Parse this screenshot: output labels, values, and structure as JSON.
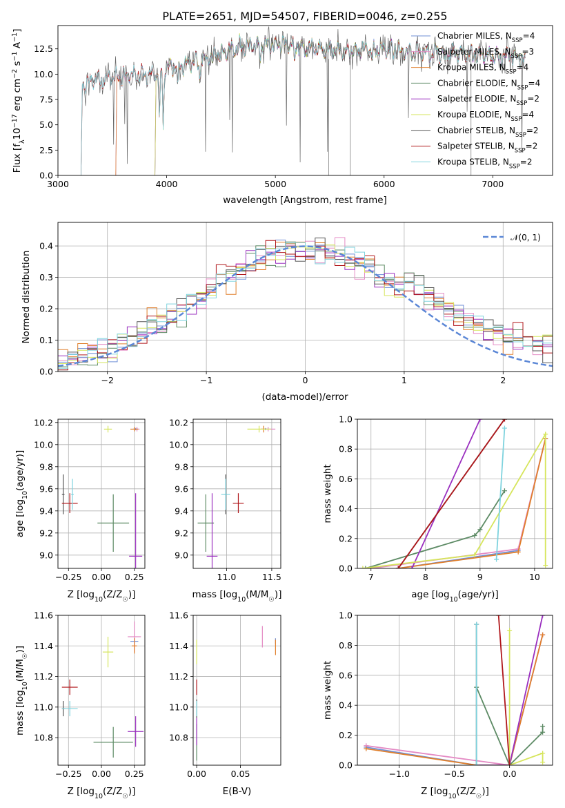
{
  "figure_title": "PLATE=2651, MJD=54507, FIBERID=0046, z=0.255",
  "colors": {
    "Chabrier MILES": "#6f8fd6",
    "Salpeter MILES": "#e48ac4",
    "Kroupa MILES": "#e07f2b",
    "Chabrier ELODIE": "#5c8a64",
    "Salpeter ELODIE": "#9a2fbf",
    "Kroupa ELODIE": "#d6e55c",
    "Chabrier STELIB": "#555555",
    "Salpeter STELIB": "#b0161a",
    "Kroupa STELIB": "#7fd3de",
    "normal": "#5b87d6"
  },
  "chart_data": [
    {
      "id": "spectrum",
      "type": "line",
      "title": "PLATE=2651, MJD=54507, FIBERID=0046, z=0.255",
      "xlabel": "wavelength [Angstrom, rest frame]",
      "ylabel": "Flux [f_λ 10^−17 erg cm^−2 s^−1 A^−1]",
      "ylabel_parts": [
        "Flux [f",
        "λ",
        "10",
        "−17",
        " erg cm",
        "−2",
        " s",
        "−1",
        " A",
        "−1",
        "]"
      ],
      "xlim": [
        3000,
        7550
      ],
      "ylim": [
        0,
        14.8
      ],
      "xticks": [
        3000,
        4000,
        5000,
        6000,
        7000
      ],
      "yticks": [
        0.0,
        2.5,
        5.0,
        7.5,
        10.0,
        12.5
      ],
      "legend_position": "right",
      "legend": [
        {
          "label": "Chabrier MILES, N",
          "sub": "SSP",
          "suffix": "=4"
        },
        {
          "label": "Salpeter MILES, N",
          "sub": "SSP",
          "suffix": "=3"
        },
        {
          "label": "Kroupa MILES, N",
          "sub": "SSP",
          "suffix": "=4"
        },
        {
          "label": "Chabrier ELODIE, N",
          "sub": "SSP",
          "suffix": "=4"
        },
        {
          "label": "Salpeter ELODIE, N",
          "sub": "SSP",
          "suffix": "=2"
        },
        {
          "label": "Kroupa ELODIE, N",
          "sub": "SSP",
          "suffix": "=4"
        },
        {
          "label": "Chabrier STELIB, N",
          "sub": "SSP",
          "suffix": "=2"
        },
        {
          "label": "Salpeter STELIB, N",
          "sub": "SSP",
          "suffix": "=2"
        },
        {
          "label": "Kroupa STELIB, N",
          "sub": "SSP",
          "suffix": "=2"
        }
      ],
      "series": [
        {
          "name": "Chabrier MILES",
          "start": 3540
        },
        {
          "name": "Salpeter MILES",
          "start": 3540
        },
        {
          "name": "Kroupa MILES",
          "start": 3540
        },
        {
          "name": "Chabrier ELODIE",
          "start": 3900
        },
        {
          "name": "Salpeter ELODIE",
          "start": 3900
        },
        {
          "name": "Kroupa ELODIE",
          "start": 3900
        },
        {
          "name": "Chabrier STELIB",
          "start": 3220
        },
        {
          "name": "Salpeter STELIB",
          "start": 3220
        },
        {
          "name": "Kroupa STELIB",
          "start": 3220
        }
      ],
      "continuum": {
        "x": [
          3200,
          3300,
          3500,
          3700,
          3900,
          4000,
          4200,
          4400,
          4600,
          4800,
          5000,
          5200,
          5400,
          5600,
          5800,
          6000,
          6200,
          6500,
          6800,
          7000,
          7300
        ],
        "y": [
          8.8,
          9.3,
          9.6,
          9.9,
          10.0,
          10.7,
          11.0,
          11.6,
          12.5,
          12.8,
          12.9,
          12.9,
          12.5,
          12.2,
          12.4,
          12.5,
          12.2,
          12.1,
          12.0,
          11.8,
          11.6
        ]
      },
      "absorption": [
        [
          3934,
          5.5
        ],
        [
          3969,
          5.8
        ],
        [
          4102,
          2.5
        ],
        [
          4304,
          2.0
        ],
        [
          4862,
          2.0
        ],
        [
          5175,
          1.8
        ],
        [
          5270,
          1.5
        ],
        [
          5893,
          1.5
        ],
        [
          6563,
          1.0
        ]
      ]
    },
    {
      "id": "residuals",
      "type": "line",
      "xlabel": "(data-model)/error",
      "ylabel": "Normed distribution",
      "xlim": [
        -2.5,
        2.5
      ],
      "ylim": [
        0,
        0.475
      ],
      "xticks": [
        -2,
        -1,
        0,
        1,
        2
      ],
      "yticks": [
        0.0,
        0.1,
        0.2,
        0.3,
        0.4
      ],
      "grid": true,
      "legend_position": "top-right",
      "legend": [
        "𝒩(0, 1)"
      ],
      "normal_curve": {
        "mean": 0,
        "sigma": 1
      }
    },
    {
      "id": "age_vs_Z",
      "type": "scatter",
      "xlabel": "Z [log10(Z/Z☉)]",
      "xlabel_parts": [
        "Z [log",
        "10",
        "(Z/Z",
        "☉",
        ")]"
      ],
      "ylabel": "age [log10(age/yr)]",
      "ylabel_parts": [
        "age  [log",
        "10",
        "(age/yr)]"
      ],
      "xlim": [
        -0.33,
        0.33
      ],
      "ylim": [
        8.88,
        10.23
      ],
      "xticks": [
        -0.25,
        0.0,
        0.25
      ],
      "yticks": [
        9.0,
        9.2,
        9.4,
        9.6,
        9.8,
        10.0,
        10.2
      ],
      "grid": true,
      "points": [
        {
          "series": "Chabrier MILES",
          "x": 0.26,
          "xerr": 0.02,
          "y": 10.14,
          "yerr": 0.01
        },
        {
          "series": "Salpeter MILES",
          "x": 0.27,
          "xerr": 0.02,
          "y": 10.14,
          "yerr": 0.02
        },
        {
          "series": "Kroupa MILES",
          "x": 0.25,
          "xerr": 0.03,
          "y": 10.14,
          "yerr": 0.02
        },
        {
          "series": "Chabrier ELODIE",
          "x": 0.09,
          "xerr": 0.12,
          "y": 9.29,
          "yerr": 0.26
        },
        {
          "series": "Salpeter ELODIE",
          "x": 0.26,
          "xerr": 0.05,
          "y": 8.99,
          "yerr": 0.57
        },
        {
          "series": "Kroupa ELODIE",
          "x": 0.05,
          "xerr": 0.03,
          "y": 10.14,
          "yerr": 0.03
        },
        {
          "series": "Chabrier STELIB",
          "x": -0.29,
          "xerr": 0.01,
          "y": 9.55,
          "yerr": 0.18
        },
        {
          "series": "Salpeter STELIB",
          "x": -0.24,
          "xerr": 0.06,
          "y": 9.47,
          "yerr": 0.09
        },
        {
          "series": "Kroupa STELIB",
          "x": -0.22,
          "xerr": 0.01,
          "y": 9.55,
          "yerr": 0.14
        }
      ]
    },
    {
      "id": "age_vs_mass",
      "type": "scatter",
      "xlabel": "mass [log10(M/M☉)]",
      "xlabel_parts": [
        "mass [log",
        "10",
        "(M/M",
        "☉",
        ")]"
      ],
      "xlim": [
        10.63,
        11.6
      ],
      "ylim": [
        8.88,
        10.23
      ],
      "xticks": [
        11.0,
        11.5
      ],
      "yticks": [
        9.0,
        9.2,
        9.4,
        9.6,
        9.8,
        10.0,
        10.2
      ],
      "grid": true,
      "points": [
        {
          "series": "Chabrier MILES",
          "x": 11.43,
          "xerr": 0.02,
          "y": 10.14,
          "yerr": 0.01
        },
        {
          "series": "Salpeter MILES",
          "x": 11.46,
          "xerr": 0.08,
          "y": 10.14,
          "yerr": 0.02
        },
        {
          "series": "Kroupa MILES",
          "x": 11.41,
          "xerr": 0.03,
          "y": 10.14,
          "yerr": 0.03
        },
        {
          "series": "Chabrier ELODIE",
          "x": 10.77,
          "xerr": 0.09,
          "y": 9.29,
          "yerr": 0.26
        },
        {
          "series": "Salpeter ELODIE",
          "x": 10.84,
          "xerr": 0.06,
          "y": 8.99,
          "yerr": 0.57
        },
        {
          "series": "Kroupa ELODIE",
          "x": 11.36,
          "xerr": 0.13,
          "y": 10.14,
          "yerr": 0.03
        },
        {
          "series": "Chabrier STELIB",
          "x": 10.99,
          "xerr": 0.01,
          "y": 9.55,
          "yerr": 0.18
        },
        {
          "series": "Salpeter STELIB",
          "x": 11.13,
          "xerr": 0.06,
          "y": 9.47,
          "yerr": 0.09
        },
        {
          "series": "Kroupa STELIB",
          "x": 10.99,
          "xerr": 0.05,
          "y": 9.55,
          "yerr": 0.14
        }
      ]
    },
    {
      "id": "weight_vs_age",
      "type": "line",
      "xlabel": "age [log10(age/yr)]",
      "xlabel_parts": [
        "age  [log",
        "10",
        "(age/yr)]"
      ],
      "ylabel": "mass weight",
      "xlim": [
        6.75,
        10.33
      ],
      "ylim": [
        0,
        1
      ],
      "xticks": [
        7,
        8,
        9,
        10
      ],
      "yticks": [
        0.0,
        0.2,
        0.4,
        0.6,
        0.8,
        1.0
      ],
      "grid": true,
      "series": [
        {
          "name": "Chabrier MILES",
          "x": [
            7.5,
            9.7,
            10.2
          ],
          "y": [
            0.0,
            0.12,
            0.87
          ]
        },
        {
          "name": "Salpeter MILES",
          "x": [
            7.0,
            9.7,
            10.2
          ],
          "y": [
            0.0,
            0.13,
            0.87
          ]
        },
        {
          "name": "Kroupa MILES",
          "x": [
            7.5,
            9.7,
            10.2
          ],
          "y": [
            0.0,
            0.11,
            0.87
          ]
        },
        {
          "name": "Chabrier ELODIE",
          "x": [
            6.9,
            8.9,
            9.0,
            9.45
          ],
          "y": [
            0.0,
            0.22,
            0.26,
            0.52
          ]
        },
        {
          "name": "Salpeter ELODIE",
          "x": [
            7.75,
            9.0
          ],
          "y": [
            0.0,
            1.0
          ]
        },
        {
          "name": "Kroupa ELODIE",
          "x": [
            6.85,
            8.9,
            10.2,
            10.2
          ],
          "y": [
            0.0,
            0.09,
            0.9,
            0.02
          ]
        },
        {
          "name": "Chabrier STELIB",
          "x": [
            7.5,
            9.45
          ],
          "y": [
            0.0,
            1.0
          ]
        },
        {
          "name": "Salpeter STELIB",
          "x": [
            7.5,
            9.45
          ],
          "y": [
            0.0,
            1.0
          ]
        },
        {
          "name": "Kroupa STELIB",
          "x": [
            9.3,
            9.45
          ],
          "y": [
            0.06,
            0.94
          ]
        }
      ]
    },
    {
      "id": "mass_vs_Z",
      "type": "scatter",
      "xlabel": "Z [log10(Z/Z☉)]",
      "xlabel_parts": [
        "Z [log",
        "10",
        "(Z/Z",
        "☉",
        ")]"
      ],
      "ylabel": "mass [log10(M/M☉)]",
      "ylabel_parts": [
        "mass [log",
        "10",
        "(M/M",
        "☉",
        ")]"
      ],
      "xlim": [
        -0.33,
        0.33
      ],
      "ylim": [
        10.62,
        11.6
      ],
      "xticks": [
        -0.25,
        0.0,
        0.25
      ],
      "yticks": [
        10.8,
        11.0,
        11.2,
        11.4,
        11.6
      ],
      "grid": true,
      "points": [
        {
          "series": "Chabrier MILES",
          "x": 0.25,
          "xerr": 0.03,
          "y": 11.43,
          "yerr": 0.02
        },
        {
          "series": "Salpeter MILES",
          "x": 0.25,
          "xerr": 0.05,
          "y": 11.46,
          "yerr": 0.1
        },
        {
          "series": "Kroupa MILES",
          "x": 0.25,
          "xerr": 0.02,
          "y": 11.4,
          "yerr": 0.05
        },
        {
          "series": "Chabrier ELODIE",
          "x": 0.09,
          "xerr": 0.15,
          "y": 10.77,
          "yerr": 0.1
        },
        {
          "series": "Salpeter ELODIE",
          "x": 0.26,
          "xerr": 0.06,
          "y": 10.84,
          "yerr": 0.1
        },
        {
          "series": "Kroupa ELODIE",
          "x": 0.05,
          "xerr": 0.04,
          "y": 11.36,
          "yerr": 0.1
        },
        {
          "series": "Chabrier STELIB",
          "x": -0.29,
          "xerr": 0.01,
          "y": 10.99,
          "yerr": 0.05
        },
        {
          "series": "Salpeter STELIB",
          "x": -0.24,
          "xerr": 0.06,
          "y": 11.13,
          "yerr": 0.05
        },
        {
          "series": "Kroupa STELIB",
          "x": -0.24,
          "xerr": 0.06,
          "y": 10.99,
          "yerr": 0.05
        }
      ]
    },
    {
      "id": "mass_vs_ebv",
      "type": "scatter",
      "xlabel": "E(B-V)",
      "xlim": [
        -0.004,
        0.096
      ],
      "ylim": [
        10.62,
        11.6
      ],
      "xticks": [
        0.0,
        0.05
      ],
      "yticks": [
        10.8,
        11.0,
        11.2,
        11.4,
        11.6
      ],
      "grid": true,
      "points": [
        {
          "series": "Chabrier MILES",
          "x": 0.09,
          "y": 11.43,
          "yerr": 0.02
        },
        {
          "series": "Salpeter MILES",
          "x": 0.075,
          "y": 11.46,
          "yerr": 0.07
        },
        {
          "series": "Kroupa MILES",
          "x": 0.09,
          "y": 11.39,
          "yerr": 0.05
        },
        {
          "series": "Chabrier ELODIE",
          "x": 0.0,
          "y": 10.77,
          "yerr": 0.12
        },
        {
          "series": "Salpeter ELODIE",
          "x": 0.0,
          "y": 10.84,
          "yerr": 0.09
        },
        {
          "series": "Kroupa ELODIE",
          "x": 0.0,
          "y": 11.36,
          "yerr": 0.08
        },
        {
          "series": "Chabrier STELIB",
          "x": 0.0,
          "y": 10.99,
          "yerr": 0.06
        },
        {
          "series": "Salpeter STELIB",
          "x": 0.0,
          "y": 11.13,
          "yerr": 0.05
        },
        {
          "series": "Kroupa STELIB",
          "x": 0.0,
          "y": 10.99,
          "yerr": 0.05
        }
      ]
    },
    {
      "id": "weight_vs_Z",
      "type": "line",
      "xlabel": "Z [log10(Z/Z☉)]",
      "xlabel_parts": [
        "Z [log",
        "10",
        "(Z/Z",
        "☉",
        ")]"
      ],
      "ylabel": "mass weight",
      "xlim": [
        -1.38,
        0.39
      ],
      "ylim": [
        0,
        1
      ],
      "xticks": [
        -1.0,
        -0.5,
        0.0
      ],
      "yticks": [
        0.0,
        0.2,
        0.4,
        0.6,
        0.8,
        1.0
      ],
      "grid": true,
      "series": [
        {
          "name": "Chabrier MILES",
          "x": [
            -1.3,
            -0.3,
            0.0,
            0.3
          ],
          "y": [
            0.12,
            0.0,
            0.0,
            0.87
          ]
        },
        {
          "name": "Salpeter MILES",
          "x": [
            -1.3,
            0.0,
            0.3
          ],
          "y": [
            0.13,
            0.0,
            0.87
          ]
        },
        {
          "name": "Kroupa MILES",
          "x": [
            -1.3,
            -0.3,
            0.0,
            0.3
          ],
          "y": [
            0.11,
            0.0,
            0.0,
            0.87
          ]
        },
        {
          "name": "Chabrier ELODIE",
          "x": [
            -0.3,
            0.0,
            0.3,
            0.3
          ],
          "y": [
            0.52,
            0.0,
            0.22,
            0.26
          ]
        },
        {
          "name": "Salpeter ELODIE",
          "x": [
            -0.3,
            0.0,
            0.3
          ],
          "y": [
            0.0,
            0.0,
            1.0
          ]
        },
        {
          "name": "Kroupa ELODIE",
          "x": [
            0.0,
            0.0,
            0.3,
            0.3
          ],
          "y": [
            0.9,
            0.0,
            0.08,
            0.02
          ]
        },
        {
          "name": "Chabrier STELIB",
          "x": [
            -0.3,
            -0.3
          ],
          "y": [
            0.0,
            0.94
          ]
        },
        {
          "name": "Salpeter STELIB",
          "x": [
            -0.1,
            0.0
          ],
          "y": [
            1.0,
            0.0
          ]
        },
        {
          "name": "Kroupa STELIB",
          "x": [
            -0.3,
            -0.3
          ],
          "y": [
            0.0,
            0.94
          ]
        }
      ]
    }
  ]
}
